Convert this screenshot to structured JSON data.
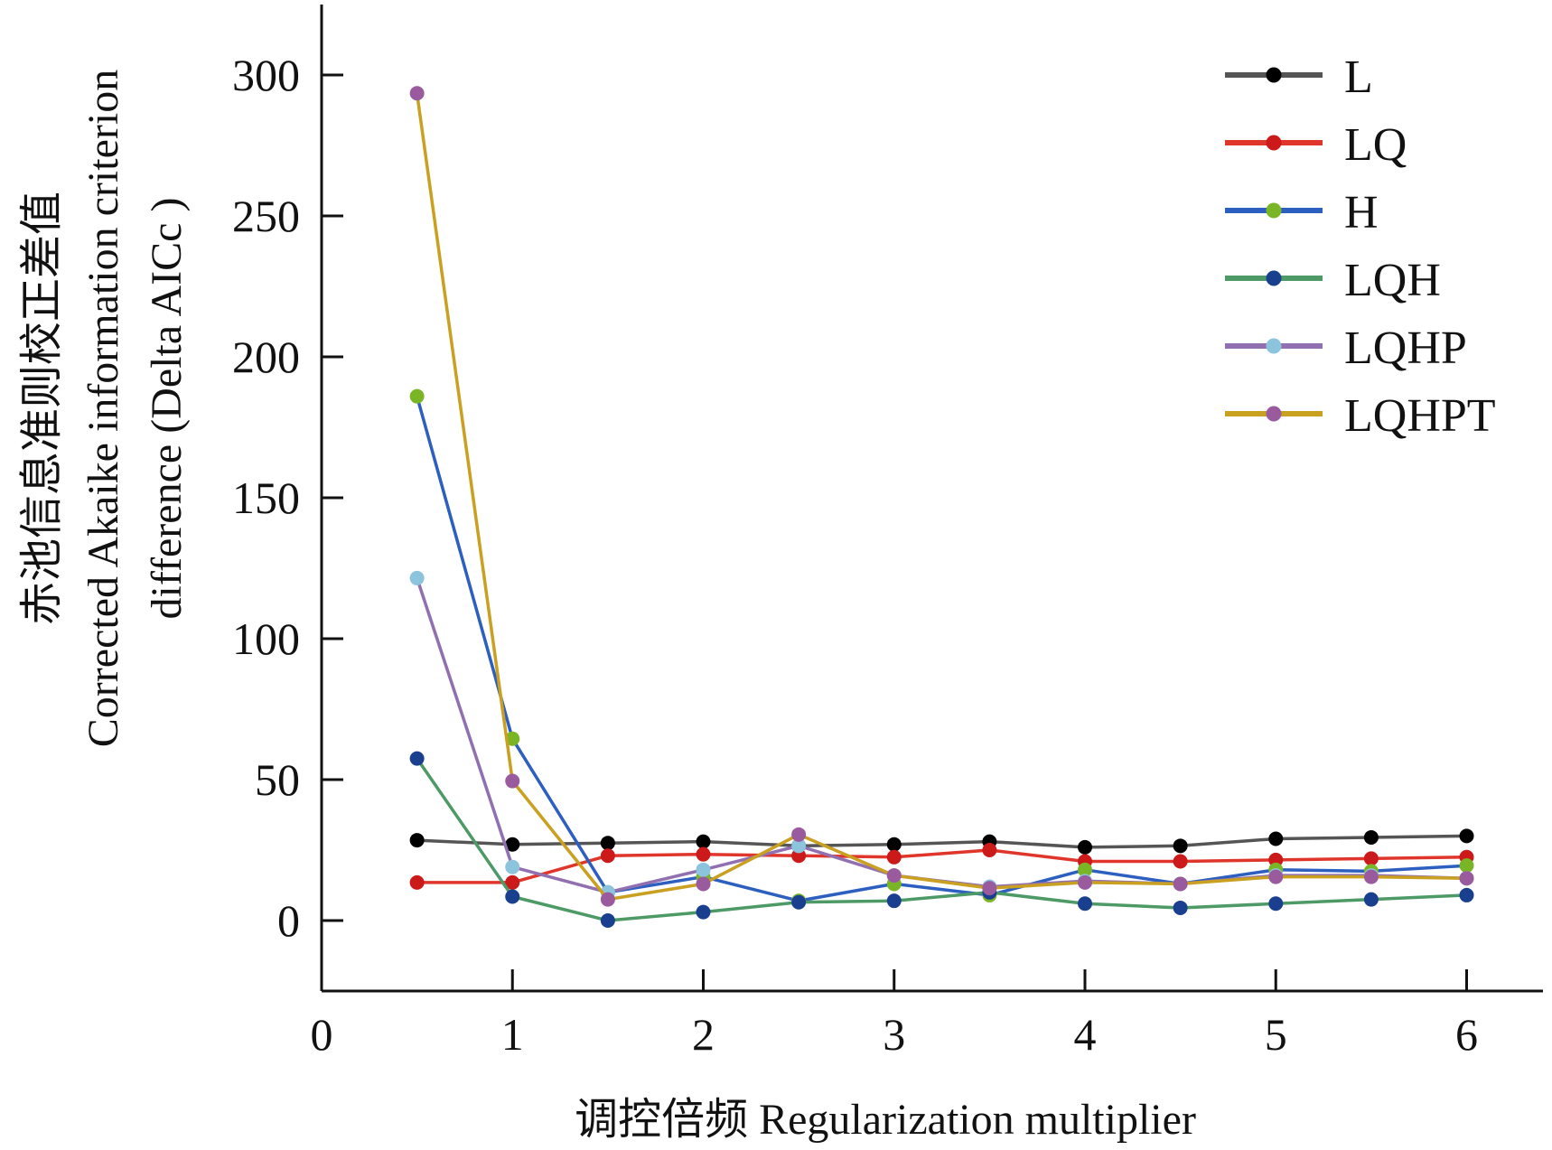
{
  "chart_data": {
    "type": "line",
    "xlabel": "调控倍频 Regularization multiplier",
    "ylabel_lines": [
      "赤池信息准则校正差值",
      "Corrected Akaike information criterion",
      "difference (Delta AICc )"
    ],
    "xlim": [
      0,
      6.4
    ],
    "ylim": [
      -25,
      325
    ],
    "xticks": [
      0,
      1,
      2,
      3,
      4,
      5,
      6
    ],
    "yticks": [
      0,
      50,
      100,
      150,
      200,
      250,
      300
    ],
    "grid": false,
    "legend_position": "top-right",
    "x": [
      0.5,
      1,
      1.5,
      2,
      2.5,
      3,
      3.5,
      4,
      4.5,
      5,
      5.5,
      6
    ],
    "series": [
      {
        "name": "L",
        "line_color": "#555555",
        "marker_color": "#000000",
        "values": [
          28.5,
          27,
          27.5,
          28,
          26.5,
          27,
          28,
          26,
          26.5,
          29,
          29.5,
          30
        ]
      },
      {
        "name": "LQ",
        "line_color": "#e0352b",
        "marker_color": "#cc1a1a",
        "values": [
          13.5,
          13.5,
          23,
          23.5,
          23,
          22.5,
          25,
          21,
          21,
          21.5,
          22,
          22.5
        ]
      },
      {
        "name": "H",
        "line_color": "#2c5fbf",
        "marker_color": "#7ab526",
        "values": [
          186,
          64.5,
          10,
          15.5,
          7,
          13,
          9,
          18,
          13,
          18,
          17.5,
          19.5
        ]
      },
      {
        "name": "LQH",
        "line_color": "#4e9a67",
        "marker_color": "#1a3f8f",
        "values": [
          57.5,
          8.5,
          0,
          3,
          6.5,
          7,
          10,
          6,
          4.5,
          6,
          7.5,
          9
        ]
      },
      {
        "name": "LQHP",
        "line_color": "#9070b0",
        "marker_color": "#8cc3dd",
        "values": [
          121.5,
          19,
          10,
          18,
          26.5,
          16,
          12,
          14,
          13,
          16,
          16,
          15
        ]
      },
      {
        "name": "LQHPT",
        "line_color": "#c9a020",
        "marker_color": "#9a5a9e",
        "values": [
          293.5,
          49.5,
          7.5,
          13,
          30.5,
          16,
          11.5,
          13.5,
          13,
          15.5,
          15.5,
          15
        ]
      }
    ]
  }
}
